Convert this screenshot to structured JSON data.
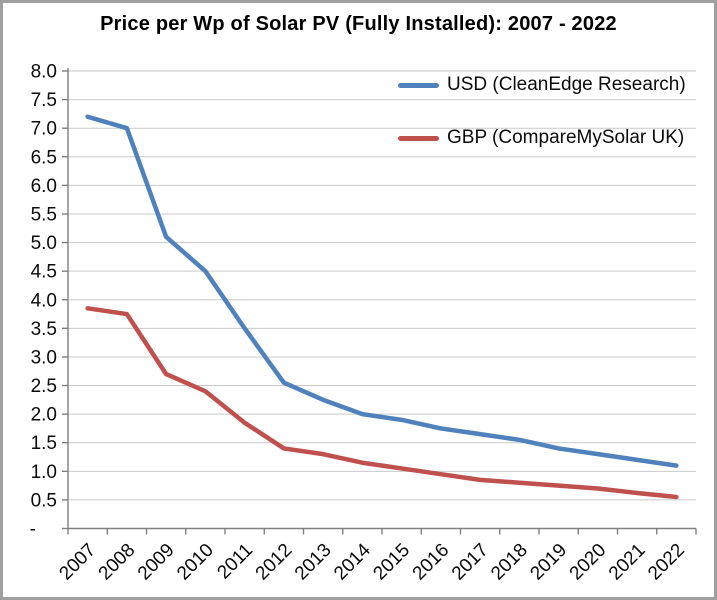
{
  "chart_data": {
    "type": "line",
    "title": "Price per Wp of Solar PV (Fully Installed): 2007 - 2022",
    "categories": [
      "2007",
      "2008",
      "2009",
      "2010",
      "2011",
      "2012",
      "2013",
      "2014",
      "2015",
      "2016",
      "2017",
      "2018",
      "2019",
      "2020",
      "2021",
      "2022"
    ],
    "series": [
      {
        "name": "USD (CleanEdge Research)",
        "color": "#4F81BD",
        "values": [
          7.2,
          7.0,
          5.1,
          4.5,
          3.5,
          2.55,
          2.25,
          2.0,
          1.9,
          1.75,
          1.65,
          1.55,
          1.4,
          1.3,
          1.2,
          1.1
        ]
      },
      {
        "name": "GBP (CompareMySolar UK)",
        "color": "#C0504D",
        "values": [
          3.85,
          3.75,
          2.7,
          2.4,
          1.85,
          1.4,
          1.3,
          1.15,
          1.05,
          0.95,
          0.85,
          0.8,
          0.75,
          0.7,
          0.62,
          0.55
        ]
      }
    ],
    "ylim": [
      0,
      8
    ],
    "y_axis": {
      "step": 0.5,
      "tick_labels": [
        "8.0",
        "7.5",
        "7.0",
        "6.5",
        "6.0",
        "5.5",
        "5.0",
        "4.5",
        "4.0",
        "3.5",
        "3.0",
        "2.5",
        "2.0",
        "1.5",
        "1.0",
        "0.5",
        "-"
      ],
      "zero_shown_as": "-"
    },
    "x_axis": {
      "label_rotation_deg": -45
    },
    "legend": {
      "position": "top-right",
      "border": false
    },
    "grid": true
  },
  "colors": {
    "grid": "#c9c9c9",
    "axis": "#808080",
    "text": "#0b0b0b",
    "frame_border": "#a0a0a0",
    "background": "#ffffff"
  }
}
